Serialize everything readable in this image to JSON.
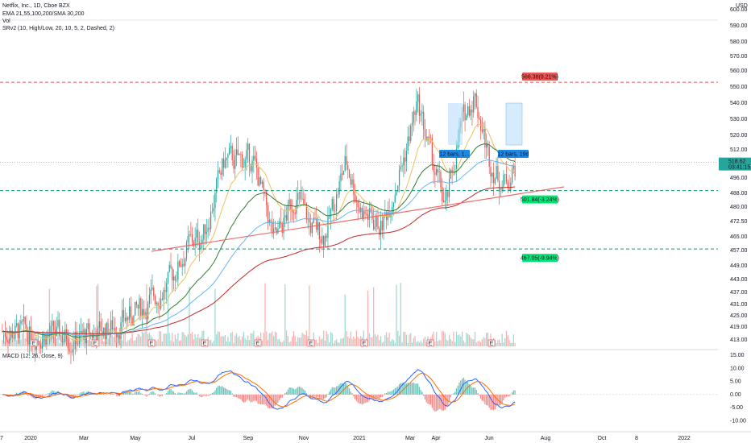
{
  "legend": {
    "symbol_line": "Netflix, Inc., 1D, Cboe BZX",
    "ema_line": "EMA 21,55,100,200/SMA 30,200",
    "vol_line": "Vol",
    "srv2_line": "SRv2 (10, High/Low, 20, 10, 5, 2, Dashed, 2)",
    "macd_line": "MACD (12, 26, close, 9)"
  },
  "currency": "USD",
  "colors": {
    "up": "#26a69a",
    "down": "#ef5350",
    "resistance": "#ef5350",
    "support": "#089981",
    "ema21": "#f0c060",
    "ema55": "#2e7d32",
    "ema100": "#64b5f6",
    "ema200": "#c62828",
    "macd": "#2962ff",
    "signal": "#ff6d00",
    "hist_up": "#26a69a",
    "hist_down": "#ef5350",
    "trendline": "#f06b6b",
    "projection": "#bbdefb",
    "label_blue": "#1e88e5",
    "label_green": "#00e676"
  },
  "price_axis": {
    "ticks": [
      "600.00",
      "590.00",
      "580.00",
      "570.00",
      "560.00",
      "550.00",
      "540.00",
      "530.00",
      "520.00",
      "512.00",
      "504.00",
      "496.00",
      "488.00",
      "480.00",
      "472.50",
      "465.00",
      "457.00",
      "449.00",
      "443.00",
      "437.00",
      "431.00",
      "425.00",
      "419.00",
      "413.00"
    ],
    "current_price": "518.62",
    "countdown": "03:41:15"
  },
  "macd_axis": {
    "ticks": [
      "15.00",
      "10.00",
      "5.00",
      "0.00",
      "-5.00",
      "-10.00"
    ]
  },
  "time_axis": [
    "7",
    "2020",
    "Mar",
    "May",
    "Jul",
    "Sep",
    "Nov",
    "2021",
    "Mar",
    "Apr",
    "Jun",
    "Aug",
    "Oct",
    "8",
    "2022"
  ],
  "earnings_marker": "E",
  "labels": {
    "target_up": "566.38(9.21%)",
    "support_mid": "501.84(-3.24%)",
    "support_low": "467.05(-9.94%)",
    "bars_left": "12 bars, 1...",
    "bars_right": "12 bars, 19d"
  },
  "chart_data": {
    "type": "candlestick",
    "levels": {
      "resistance": 566.38,
      "support_mid": 501.84,
      "support_low": 467.05
    },
    "current_price": 518.62,
    "price_range": [
      409,
      601
    ],
    "macd_range": [
      -13,
      16
    ]
  }
}
